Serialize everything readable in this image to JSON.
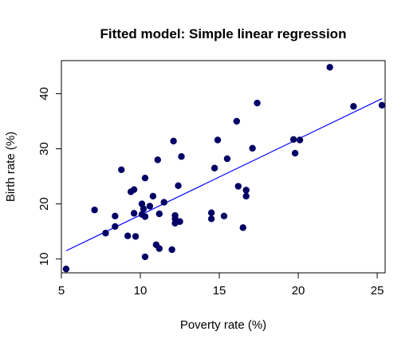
{
  "chart_data": {
    "type": "scatter",
    "title": "Fitted model: Simple linear regression",
    "xlabel": "Poverty rate (%)",
    "ylabel": "Birth rate (%)",
    "xlim": [
      5.0,
      25.5
    ],
    "ylim": [
      7.5,
      46.0
    ],
    "xticks": [
      5,
      10,
      15,
      20,
      25
    ],
    "yticks": [
      10,
      20,
      30,
      40
    ],
    "grid": false,
    "point_color": "#000066",
    "line_color": "#0000ff",
    "points": [
      [
        5.3,
        8.2
      ],
      [
        7.1,
        18.9
      ],
      [
        7.8,
        14.7
      ],
      [
        8.4,
        15.9
      ],
      [
        8.4,
        17.8
      ],
      [
        8.8,
        26.2
      ],
      [
        9.2,
        14.2
      ],
      [
        9.4,
        22.2
      ],
      [
        9.6,
        22.6
      ],
      [
        9.6,
        18.3
      ],
      [
        9.7,
        14.1
      ],
      [
        10.1,
        18.1
      ],
      [
        10.1,
        20.0
      ],
      [
        10.2,
        19.1
      ],
      [
        10.3,
        24.7
      ],
      [
        10.3,
        17.7
      ],
      [
        10.3,
        10.4
      ],
      [
        10.6,
        19.6
      ],
      [
        10.8,
        21.4
      ],
      [
        11.0,
        12.6
      ],
      [
        11.1,
        28.0
      ],
      [
        11.2,
        18.2
      ],
      [
        11.2,
        11.9
      ],
      [
        11.5,
        20.3
      ],
      [
        12.0,
        11.7
      ],
      [
        12.1,
        31.4
      ],
      [
        12.2,
        17.9
      ],
      [
        12.2,
        17.3
      ],
      [
        12.2,
        16.5
      ],
      [
        12.4,
        23.3
      ],
      [
        12.5,
        16.8
      ],
      [
        12.6,
        28.6
      ],
      [
        14.5,
        18.4
      ],
      [
        14.5,
        17.3
      ],
      [
        14.7,
        26.5
      ],
      [
        14.9,
        31.6
      ],
      [
        15.3,
        17.8
      ],
      [
        15.5,
        28.2
      ],
      [
        16.1,
        35.0
      ],
      [
        16.2,
        23.2
      ],
      [
        16.5,
        15.7
      ],
      [
        16.7,
        22.5
      ],
      [
        16.7,
        21.4
      ],
      [
        17.1,
        30.1
      ],
      [
        17.4,
        38.3
      ],
      [
        19.7,
        31.7
      ],
      [
        19.8,
        29.2
      ],
      [
        20.1,
        31.6
      ],
      [
        22.0,
        44.8
      ],
      [
        23.5,
        37.7
      ],
      [
        25.3,
        37.9
      ]
    ],
    "fit_line": {
      "x": [
        5.3,
        25.3
      ],
      "y": [
        11.5,
        39.1
      ]
    }
  }
}
